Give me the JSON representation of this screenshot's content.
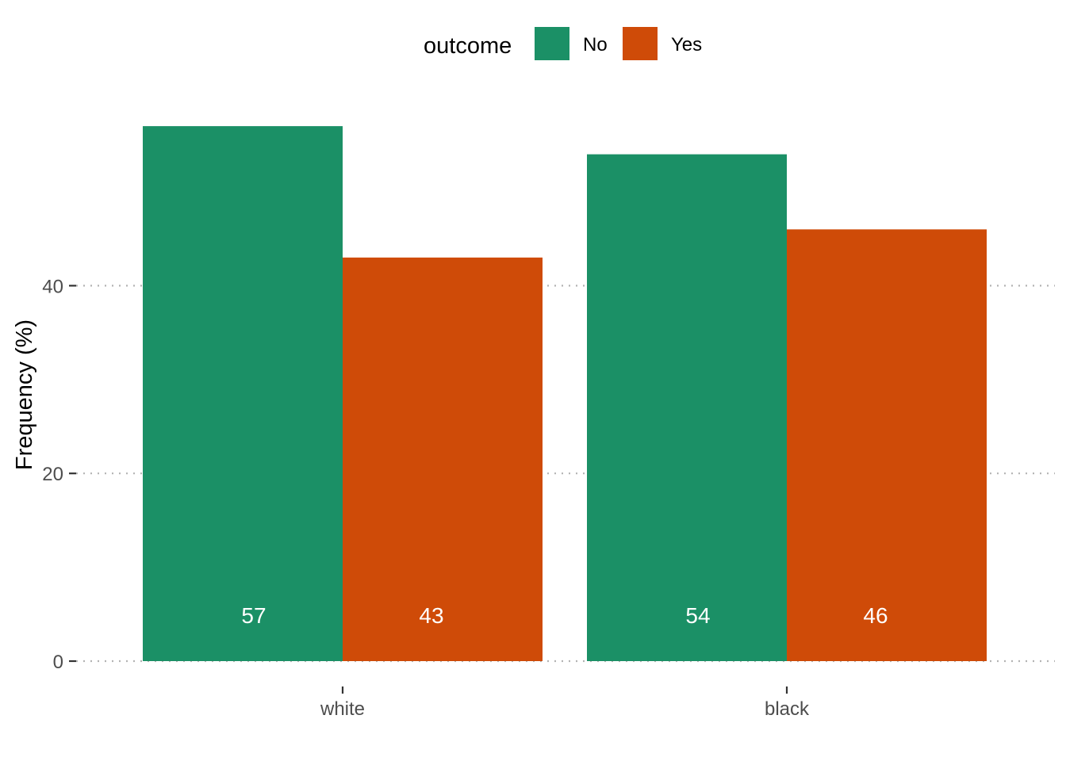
{
  "chart_data": {
    "type": "bar",
    "categories": [
      "white",
      "black"
    ],
    "series": [
      {
        "name": "No",
        "color": "#1b9066",
        "values": [
          57,
          54
        ],
        "labels": [
          "57",
          "54"
        ]
      },
      {
        "name": "Yes",
        "color": "#cf4b08",
        "values": [
          43,
          46
        ],
        "labels": [
          "43",
          "46"
        ]
      }
    ],
    "ylabel": "Frequency (%)",
    "xlabel": "",
    "ylim": [
      0,
      60
    ],
    "yticks": [
      0,
      20,
      40
    ],
    "ytick_labels": [
      "0",
      "20",
      "40"
    ],
    "grid": "horizontal dotted",
    "legend": {
      "title": "outcome",
      "position": "top",
      "entries": [
        "No",
        "Yes"
      ]
    }
  }
}
